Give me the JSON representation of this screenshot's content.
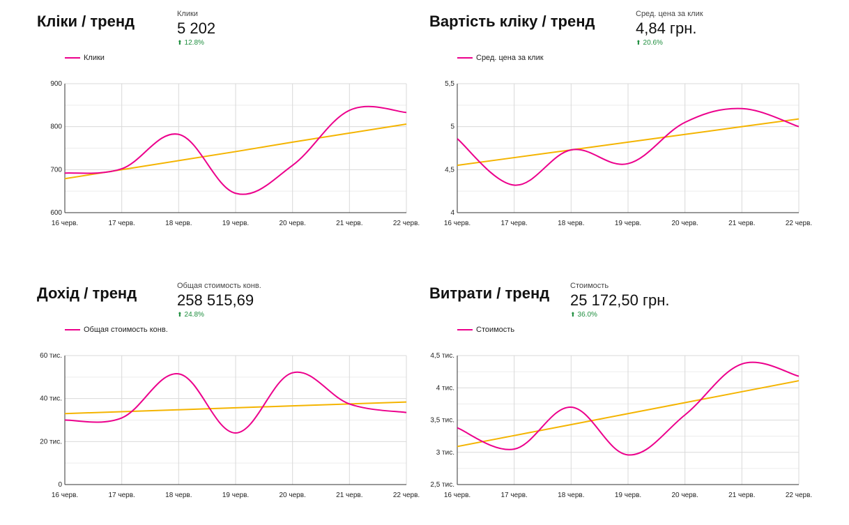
{
  "colors": {
    "series": "#ec008c",
    "trend": "#f4b400",
    "grid": "#d9d9d9",
    "delta_up": "#1e8e3e"
  },
  "panels": [
    {
      "title": "Кліки / тренд",
      "metric": {
        "label": "Клики",
        "value": "5 202",
        "delta": "12.8%",
        "delta_icon": "arrow-up-icon"
      },
      "legend": "Клики"
    },
    {
      "title": "Вартість кліку / тренд",
      "metric": {
        "label": "Сред. цена за клик",
        "value": "4,84 грн.",
        "delta": "20.6%",
        "delta_icon": "arrow-up-icon"
      },
      "legend": "Сред. цена за клик"
    },
    {
      "title": "Дохід / тренд",
      "metric": {
        "label": "Общая стоимость конв.",
        "value": "258 515,69",
        "delta": "24.8%",
        "delta_icon": "arrow-up-icon"
      },
      "legend": "Общая стоимость конв."
    },
    {
      "title": "Витрати / тренд",
      "metric": {
        "label": "Стоимость",
        "value": "25 172,50 грн.",
        "delta": "36.0%",
        "delta_icon": "arrow-up-icon"
      },
      "legend": "Стоимость"
    }
  ],
  "chart_data": [
    {
      "type": "line",
      "categories": [
        "16 черв.",
        "17 черв.",
        "18 черв.",
        "19 черв.",
        "20 черв.",
        "21 черв.",
        "22 черв."
      ],
      "series": [
        {
          "name": "Клики",
          "values": [
            692,
            702,
            782,
            645,
            710,
            838,
            833
          ]
        },
        {
          "values": [
            679,
            700,
            721,
            742,
            764,
            785,
            806
          ]
        }
      ],
      "ylim": [
        600,
        900
      ],
      "yticks": [
        600,
        700,
        800,
        900
      ],
      "ytick_labels": [
        "600",
        "700",
        "800",
        "900"
      ],
      "grid": true,
      "legend": "top-left"
    },
    {
      "type": "line",
      "categories": [
        "16 черв.",
        "17 черв.",
        "18 черв.",
        "19 черв.",
        "20 черв.",
        "21 черв.",
        "22 черв."
      ],
      "series": [
        {
          "name": "Сред. цена за клик",
          "values": [
            4.86,
            4.32,
            4.73,
            4.57,
            5.05,
            5.21,
            5.0
          ]
        },
        {
          "values": [
            4.55,
            4.64,
            4.73,
            4.82,
            4.91,
            5.0,
            5.09
          ]
        }
      ],
      "ylim": [
        4,
        5.5
      ],
      "yticks": [
        4,
        4.5,
        5,
        5.5
      ],
      "ytick_labels": [
        "4",
        "4,5",
        "5",
        "5,5"
      ],
      "grid": true,
      "legend": "top-left"
    },
    {
      "type": "line",
      "categories": [
        "16 черв.",
        "17 черв.",
        "18 черв.",
        "19 черв.",
        "20 черв.",
        "21 черв.",
        "22 черв."
      ],
      "series": [
        {
          "name": "Общая стоимость конв.",
          "values": [
            30000,
            31000,
            51500,
            24000,
            52000,
            37500,
            33500
          ]
        },
        {
          "values": [
            33000,
            33900,
            34800,
            35700,
            36600,
            37500,
            38400
          ]
        }
      ],
      "ylim": [
        0,
        60000
      ],
      "yticks": [
        0,
        20000,
        40000,
        60000
      ],
      "ytick_labels": [
        "0",
        "20 тис.",
        "40 тис.",
        "60 тис."
      ],
      "grid": true,
      "legend": "top-left"
    },
    {
      "type": "line",
      "categories": [
        "16 черв.",
        "17 черв.",
        "18 черв.",
        "19 черв.",
        "20 черв.",
        "21 черв.",
        "22 черв."
      ],
      "series": [
        {
          "name": "Стоимость",
          "values": [
            3380,
            3050,
            3700,
            2960,
            3580,
            4370,
            4180
          ]
        },
        {
          "values": [
            3090,
            3260,
            3430,
            3600,
            3770,
            3940,
            4110
          ]
        }
      ],
      "ylim": [
        2500,
        4500
      ],
      "yticks": [
        2500,
        3000,
        3500,
        4000,
        4500
      ],
      "ytick_labels": [
        "2,5 тис.",
        "3 тис.",
        "3,5 тис.",
        "4 тис.",
        "4,5 тис."
      ],
      "grid": true,
      "legend": "top-left"
    }
  ]
}
